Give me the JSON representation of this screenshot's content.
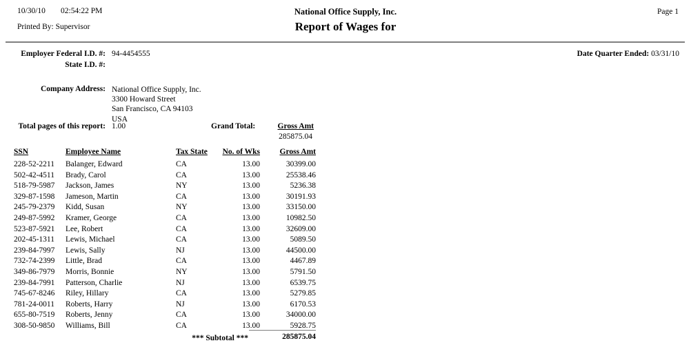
{
  "header": {
    "print_date": "10/30/10",
    "print_time": "02:54:22 PM",
    "printed_by_label": "Printed By:",
    "printed_by_value": "Supervisor",
    "company_name": "National Office Supply, Inc.",
    "report_title": "Report of Wages for",
    "page_label": "Page 1"
  },
  "info": {
    "employer_federal_id_label": "Employer Federal I.D. #:",
    "employer_federal_id_value": "94-4454555",
    "state_id_label": "State I.D. #:",
    "state_id_value": "",
    "date_quarter_ended_label": "Date Quarter Ended:",
    "date_quarter_ended_value": "03/31/10",
    "company_address_label": "Company Address:",
    "company_address_lines": [
      "National Office Supply, Inc.",
      "3300 Howard Street",
      "San Francisco, CA 94103",
      "USA"
    ],
    "total_pages_label": "Total pages of this report:",
    "total_pages_value": "1.00",
    "grand_total_label": "Grand Total:",
    "grand_total_column": "Gross Amt",
    "grand_total_value": "285875.04"
  },
  "table": {
    "columns": [
      "SSN",
      "Employee Name",
      "Tax State",
      "No. of Wks",
      "Gross Amt"
    ],
    "rows": [
      [
        "228-52-2211",
        "Balanger, Edward",
        "CA",
        "13.00",
        "30399.00"
      ],
      [
        "502-42-4511",
        "Brady, Carol",
        "CA",
        "13.00",
        "25538.46"
      ],
      [
        "518-79-5987",
        "Jackson, James",
        "NY",
        "13.00",
        "5236.38"
      ],
      [
        "329-87-1598",
        "Jameson, Martin",
        "CA",
        "13.00",
        "30191.93"
      ],
      [
        "245-79-2379",
        "Kidd, Susan",
        "NY",
        "13.00",
        "33150.00"
      ],
      [
        "249-87-5992",
        "Kramer, George",
        "CA",
        "13.00",
        "10982.50"
      ],
      [
        "523-87-5921",
        "Lee, Robert",
        "CA",
        "13.00",
        "32609.00"
      ],
      [
        "202-45-1311",
        "Lewis, Michael",
        "CA",
        "13.00",
        "5089.50"
      ],
      [
        "239-84-7997",
        "Lewis, Sally",
        "NJ",
        "13.00",
        "44500.00"
      ],
      [
        "732-74-2399",
        "Little, Brad",
        "CA",
        "13.00",
        "4467.89"
      ],
      [
        "349-86-7979",
        "Morris, Bonnie",
        "NY",
        "13.00",
        "5791.50"
      ],
      [
        "239-84-7991",
        "Patterson, Charlie",
        "NJ",
        "13.00",
        "6539.75"
      ],
      [
        "745-67-8246",
        "Riley, Hillary",
        "CA",
        "13.00",
        "5279.85"
      ],
      [
        "781-24-0011",
        "Roberts, Harry",
        "NJ",
        "13.00",
        "6170.53"
      ],
      [
        "655-80-7519",
        "Roberts, Jenny",
        "CA",
        "13.00",
        "34000.00"
      ],
      [
        "308-50-9850",
        "Williams, Bill",
        "CA",
        "13.00",
        "5928.75"
      ]
    ],
    "subtotal_label": "*** Subtotal ***",
    "subtotal_value": "285875.04"
  }
}
